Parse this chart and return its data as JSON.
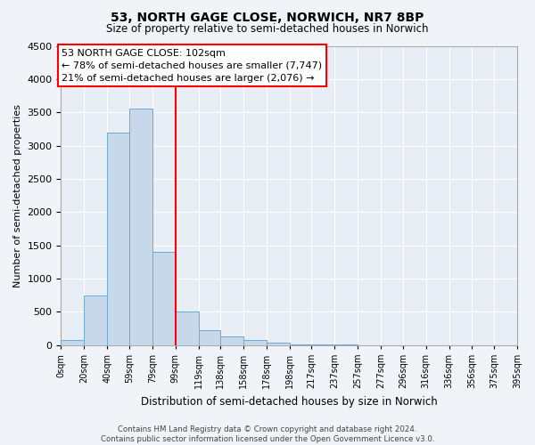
{
  "title": "53, NORTH GAGE CLOSE, NORWICH, NR7 8BP",
  "subtitle": "Size of property relative to semi-detached houses in Norwich",
  "xlabel": "Distribution of semi-detached houses by size in Norwich",
  "ylabel": "Number of semi-detached properties",
  "bar_color": "#c8d8eb",
  "bar_edge_color": "#6aaad4",
  "bin_edges": [
    0,
    20,
    40,
    59,
    79,
    99,
    119,
    138,
    158,
    178,
    198,
    217,
    237,
    257,
    277,
    296,
    316,
    336,
    356,
    375,
    395
  ],
  "counts": [
    75,
    750,
    3200,
    3550,
    1400,
    500,
    220,
    130,
    75,
    30,
    10,
    5,
    2,
    1,
    1,
    0,
    0,
    0,
    0,
    0
  ],
  "tick_labels": [
    "0sqm",
    "20sqm",
    "40sqm",
    "59sqm",
    "79sqm",
    "99sqm",
    "119sqm",
    "138sqm",
    "158sqm",
    "178sqm",
    "198sqm",
    "217sqm",
    "237sqm",
    "257sqm",
    "277sqm",
    "296sqm",
    "316sqm",
    "336sqm",
    "356sqm",
    "375sqm",
    "395sqm"
  ],
  "vline_x": 99,
  "ylim": [
    0,
    4500
  ],
  "yticks": [
    0,
    500,
    1000,
    1500,
    2000,
    2500,
    3000,
    3500,
    4000,
    4500
  ],
  "annotation_title": "53 NORTH GAGE CLOSE: 102sqm",
  "annotation_line1": "← 78% of semi-detached houses are smaller (7,747)",
  "annotation_line2": "21% of semi-detached houses are larger (2,076) →",
  "footer_line1": "Contains HM Land Registry data © Crown copyright and database right 2024.",
  "footer_line2": "Contains public sector information licensed under the Open Government Licence v3.0.",
  "fig_facecolor": "#f0f4f8",
  "ax_facecolor": "#e8eef5"
}
